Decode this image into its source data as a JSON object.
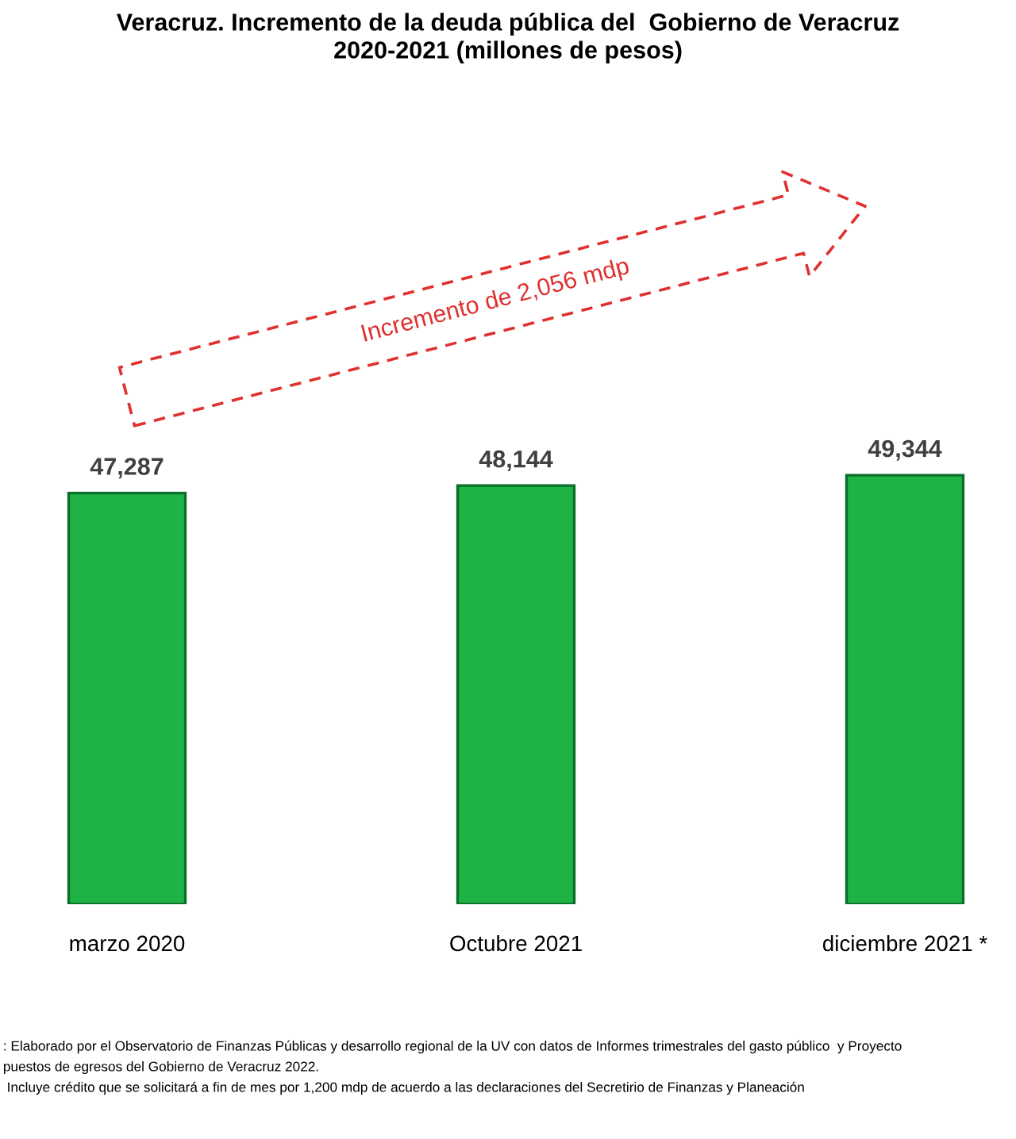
{
  "chart_data": {
    "type": "bar",
    "title": "Veracruz. Incremento de la deuda pública del  Gobierno de Veracruz\n2020-2021 (millones de pesos)",
    "categories": [
      "marzo 2020",
      "Octubre 2021",
      "diciembre 2021 *"
    ],
    "values": [
      47287,
      48144,
      49344
    ],
    "value_labels": [
      "47,287",
      "48,144",
      "49,344"
    ],
    "color": "#1fb244",
    "tick_labels": "x",
    "grid": false,
    "annotations": [
      "Incremento de 2,056 mdp",
      ": Elaborado por el Observatorio de Finanzas Públicas y desarrollo regional de la UV con datos de Informes trimestrales del gasto público  y Proyecto",
      "puestos de egresos del Gobierno de Veracruz 2022.",
      " Incluye crédito que se solicitará a fin de mes por 1,200 mdp de acuerdo a las declaraciones del Secretirio de Finanzas y Planeación"
    ]
  }
}
